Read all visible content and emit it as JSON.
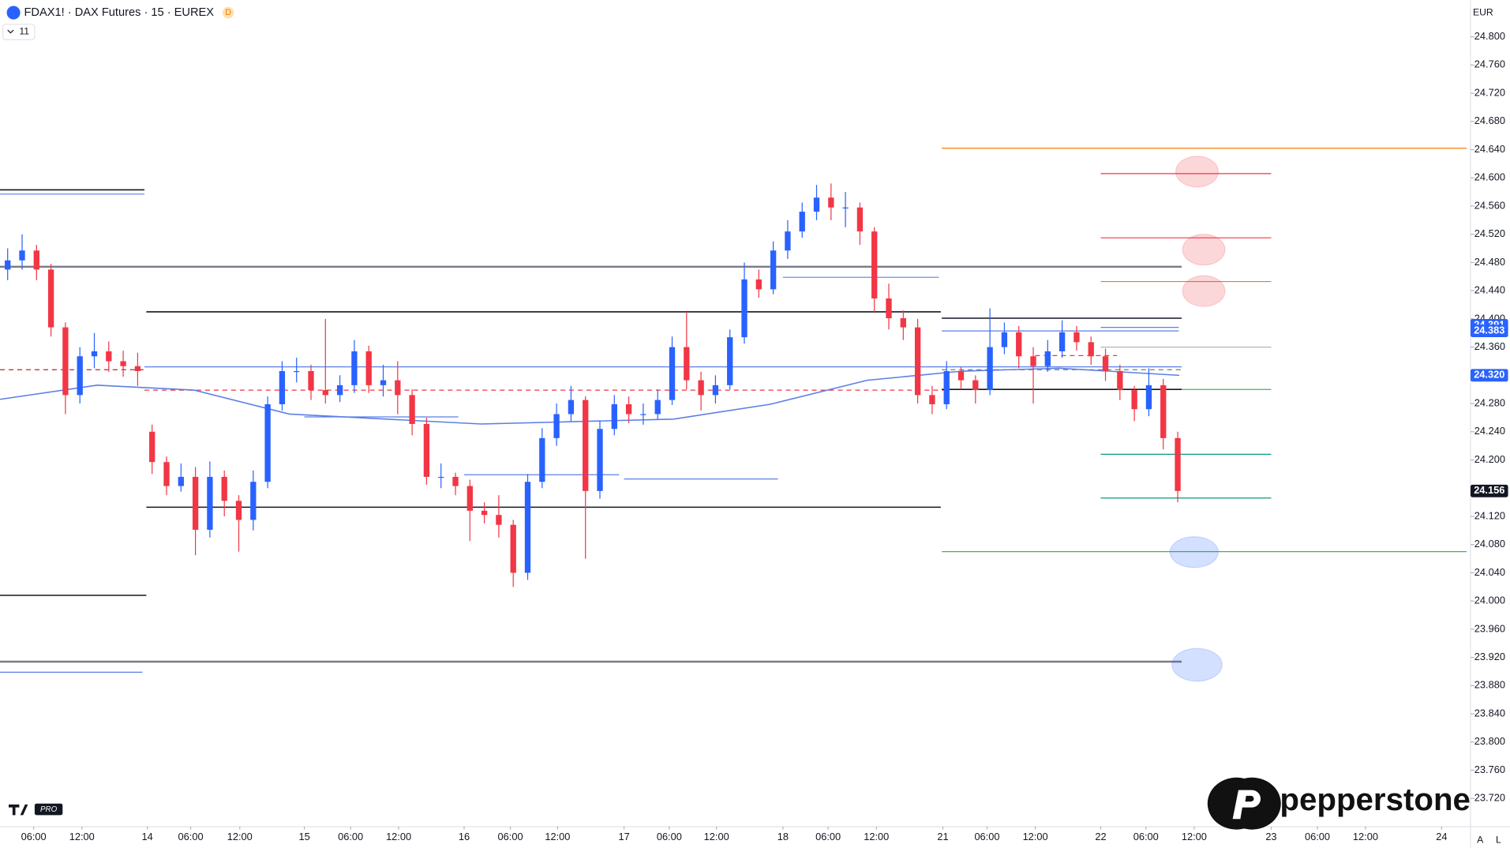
{
  "ui": {
    "symbol": "FDAX1! · DAX Futures · 15 · EUREX",
    "status_badge": "D",
    "indicator_count": 11,
    "currency": "EUR",
    "brand": "pepperstone",
    "tv_badge": "PRO",
    "auto_button": "A",
    "log_button": "L"
  },
  "chart_data": {
    "type": "candlestick",
    "ylim": [
      23680,
      24852
    ],
    "xlim": [
      -0.53,
      101.27
    ],
    "yticks": [
      {
        "value": 24800,
        "label": "24.800"
      },
      {
        "value": 24760,
        "label": "24.760"
      },
      {
        "value": 24720,
        "label": "24.720"
      },
      {
        "value": 24680,
        "label": "24.680"
      },
      {
        "value": 24640,
        "label": "24.640"
      },
      {
        "value": 24600,
        "label": "24.600"
      },
      {
        "value": 24560,
        "label": "24.560"
      },
      {
        "value": 24520,
        "label": "24.520"
      },
      {
        "value": 24480,
        "label": "24.480"
      },
      {
        "value": 24440,
        "label": "24.440"
      },
      {
        "value": 24400,
        "label": "24.400"
      },
      {
        "value": 24360,
        "label": "24.360"
      },
      {
        "value": 24280,
        "label": "24.280"
      },
      {
        "value": 24240,
        "label": "24.240"
      },
      {
        "value": 24200,
        "label": "24.200"
      },
      {
        "value": 24120,
        "label": "24.120"
      },
      {
        "value": 24080,
        "label": "24.080"
      },
      {
        "value": 24040,
        "label": "24.040"
      },
      {
        "value": 24000,
        "label": "24.000"
      },
      {
        "value": 23960,
        "label": "23.960"
      },
      {
        "value": 23920,
        "label": "23.920"
      },
      {
        "value": 23880,
        "label": "23.880"
      },
      {
        "value": 23840,
        "label": "23.840"
      },
      {
        "value": 23800,
        "label": "23.800"
      },
      {
        "value": 23760,
        "label": "23.760"
      },
      {
        "value": 23720,
        "label": "23.720"
      }
    ],
    "xticks": [
      {
        "value": 1.8,
        "label": "06:00"
      },
      {
        "value": 5.14,
        "label": "12:00"
      },
      {
        "value": 9.67,
        "label": "14"
      },
      {
        "value": 12.67,
        "label": "06:00"
      },
      {
        "value": 16.07,
        "label": "12:00"
      },
      {
        "value": 20.54,
        "label": "15"
      },
      {
        "value": 23.74,
        "label": "06:00"
      },
      {
        "value": 27.07,
        "label": "12:00"
      },
      {
        "value": 31.6,
        "label": "16"
      },
      {
        "value": 34.8,
        "label": "06:00"
      },
      {
        "value": 38.07,
        "label": "12:00"
      },
      {
        "value": 42.67,
        "label": "17"
      },
      {
        "value": 45.8,
        "label": "06:00"
      },
      {
        "value": 49.07,
        "label": "12:00"
      },
      {
        "value": 53.67,
        "label": "18"
      },
      {
        "value": 56.8,
        "label": "06:00"
      },
      {
        "value": 60.14,
        "label": "12:00"
      },
      {
        "value": 64.74,
        "label": "21"
      },
      {
        "value": 67.8,
        "label": "06:00"
      },
      {
        "value": 71.14,
        "label": "12:00"
      },
      {
        "value": 75.67,
        "label": "22"
      },
      {
        "value": 78.8,
        "label": "06:00"
      },
      {
        "value": 82.14,
        "label": "12:00"
      },
      {
        "value": 87.47,
        "label": "23"
      },
      {
        "value": 90.67,
        "label": "06:00"
      },
      {
        "value": 94.0,
        "label": "12:00"
      },
      {
        "value": 99.27,
        "label": "24"
      }
    ],
    "up_color": "#2962ff",
    "down_color": "#f23645",
    "open": [
      24470,
      24483,
      24497,
      24470,
      24388,
      24292,
      24347,
      24354,
      24340,
      24333,
      24240,
      24197,
      24163,
      24176,
      24101,
      24176,
      24142,
      24115,
      24169,
      24279,
      24326,
      24326,
      24299,
      24292,
      24306,
      24354,
      24306,
      24313,
      24292,
      24251,
      24176,
      24176,
      24163,
      24128,
      24122,
      24108,
      24040,
      24169,
      24231,
      24265,
      24285,
      24156,
      24244,
      24279,
      24265,
      24265,
      24285,
      24360,
      24313,
      24292,
      24306,
      24374,
      24456,
      24442,
      24497,
      24524,
      24552,
      24572,
      24558,
      24558,
      24524,
      24429,
      24401,
      24388,
      24292,
      24279,
      24326,
      24313,
      24299,
      24360,
      24381,
      24347,
      24333,
      24354,
      24381,
      24367,
      24347,
      24326,
      24299,
      24272,
      24306,
      24231
    ],
    "high": [
      24500,
      24520,
      24505,
      24478,
      24395,
      24360,
      24380,
      24368,
      24355,
      24352,
      24250,
      24205,
      24195,
      24190,
      24198,
      24185,
      24150,
      24185,
      24290,
      24340,
      24345,
      24335,
      24400,
      24320,
      24370,
      24362,
      24335,
      24340,
      24300,
      24260,
      24195,
      24182,
      24172,
      24140,
      24150,
      24115,
      24180,
      24245,
      24280,
      24305,
      24290,
      24255,
      24292,
      24290,
      24280,
      24300,
      24375,
      24410,
      24325,
      24320,
      24385,
      24480,
      24470,
      24510,
      24540,
      24565,
      24590,
      24592,
      24580,
      24565,
      24530,
      24450,
      24412,
      24400,
      24305,
      24340,
      24332,
      24320,
      24415,
      24395,
      24390,
      24360,
      24370,
      24398,
      24390,
      24375,
      24358,
      24335,
      24305,
      24330,
      24315,
      24240
    ],
    "low": [
      24455,
      24470,
      24455,
      24375,
      24265,
      24280,
      24330,
      24325,
      24318,
      24305,
      24180,
      24150,
      24155,
      24065,
      24090,
      24120,
      24070,
      24100,
      24160,
      24270,
      24310,
      24285,
      24280,
      24282,
      24295,
      24295,
      24290,
      24265,
      24235,
      24165,
      24160,
      24150,
      24085,
      24110,
      24090,
      24020,
      24030,
      24160,
      24220,
      24255,
      24060,
      24145,
      24235,
      24252,
      24250,
      24258,
      24278,
      24300,
      24270,
      24280,
      24300,
      24365,
      24430,
      24435,
      24485,
      24515,
      24540,
      24540,
      24530,
      24505,
      24410,
      24385,
      24370,
      24280,
      24265,
      24272,
      24300,
      24280,
      24292,
      24350,
      24330,
      24280,
      24325,
      24345,
      24355,
      24335,
      24312,
      24285,
      24255,
      24262,
      24215,
      24140
    ],
    "close": [
      24483,
      24497,
      24470,
      24388,
      24292,
      24347,
      24354,
      24340,
      24333,
      24326,
      24197,
      24163,
      24176,
      24101,
      24176,
      24142,
      24115,
      24169,
      24279,
      24326,
      24326,
      24299,
      24292,
      24306,
      24354,
      24306,
      24313,
      24292,
      24251,
      24176,
      24176,
      24163,
      24128,
      24122,
      24108,
      24040,
      24169,
      24231,
      24265,
      24285,
      24156,
      24244,
      24279,
      24265,
      24265,
      24285,
      24360,
      24313,
      24292,
      24306,
      24374,
      24456,
      24442,
      24497,
      24524,
      24552,
      24572,
      24558,
      24558,
      24524,
      24429,
      24401,
      24388,
      24292,
      24279,
      24326,
      24313,
      24299,
      24360,
      24381,
      24347,
      24333,
      24354,
      24381,
      24367,
      24347,
      24326,
      24299,
      24272,
      24306,
      24231,
      24156
    ],
    "moving_average": {
      "color": "#5b7fe6",
      "x": [
        -0.53,
        6.2,
        12.9,
        19.5,
        32.8,
        46.1,
        52.8,
        59.5,
        66.1,
        72.8,
        81.1
      ],
      "values": [
        24286,
        24306,
        24299,
        24265,
        24251,
        24258,
        24279,
        24313,
        24326,
        24330,
        24320
      ]
    },
    "levels": [
      {
        "value": 24583,
        "from": -0.53,
        "to": 9.47,
        "color": "#131722",
        "style": "solid",
        "width": 1.3
      },
      {
        "value": 24577,
        "from": -0.53,
        "to": 9.47,
        "color": "#5b7fe6",
        "style": "solid",
        "width": 1
      },
      {
        "value": 24474,
        "from": -0.53,
        "to": 81.27,
        "color": "#787b86",
        "style": "solid",
        "width": 2
      },
      {
        "value": 24410,
        "from": 9.6,
        "to": 64.6,
        "color": "#131722",
        "style": "solid",
        "width": 1.3
      },
      {
        "value": 24401,
        "from": 64.67,
        "to": 81.27,
        "color": "#131722",
        "style": "solid",
        "width": 1.3
      },
      {
        "value": 24383,
        "from": 64.67,
        "to": 81.07,
        "color": "#5b7fe6",
        "style": "solid",
        "width": 1
      },
      {
        "value": 24388,
        "from": 75.67,
        "to": 81.07,
        "color": "#5b7fe6",
        "style": "solid",
        "width": 1
      },
      {
        "value": 24360,
        "from": 75.67,
        "to": 87.47,
        "color": "#b2b5be",
        "style": "solid",
        "width": 1
      },
      {
        "value": 24348,
        "from": 71.13,
        "to": 76.8,
        "color": "#f23645",
        "style": "dashed",
        "width": 1
      },
      {
        "value": 24332,
        "from": 9.47,
        "to": 81.27,
        "color": "#5b7fe6",
        "style": "solid",
        "width": 1
      },
      {
        "value": 24328,
        "from": -0.53,
        "to": 9.47,
        "color": "#b22833",
        "style": "dashed",
        "width": 1
      },
      {
        "value": 24328,
        "from": 64.67,
        "to": 81.27,
        "color": "#787b86",
        "style": "dashed",
        "width": 1
      },
      {
        "value": 24299,
        "from": 9.47,
        "to": 64.8,
        "color": "#f23645",
        "style": "dashed",
        "width": 1
      },
      {
        "value": 24300,
        "from": 64.67,
        "to": 81.27,
        "color": "#131722",
        "style": "solid",
        "width": 1.3
      },
      {
        "value": 24300,
        "from": 81.27,
        "to": 87.47,
        "color": "#4caf50",
        "style": "solid",
        "width": 1
      },
      {
        "value": 24459,
        "from": 53.67,
        "to": 64.47,
        "color": "#5b7fe6",
        "style": "solid",
        "width": 1
      },
      {
        "value": 24261,
        "from": 20.53,
        "to": 31.2,
        "color": "#5b7fe6",
        "style": "solid",
        "width": 1
      },
      {
        "value": 24179,
        "from": 31.6,
        "to": 42.33,
        "color": "#5b7fe6",
        "style": "solid",
        "width": 1
      },
      {
        "value": 24173,
        "from": 42.67,
        "to": 53.33,
        "color": "#5b7fe6",
        "style": "solid",
        "width": 1
      },
      {
        "value": 24208,
        "from": 75.67,
        "to": 87.47,
        "color": "#089981",
        "style": "solid",
        "width": 1
      },
      {
        "value": 24146,
        "from": 75.67,
        "to": 87.47,
        "color": "#089981",
        "style": "solid",
        "width": 1
      },
      {
        "value": 24133,
        "from": 9.6,
        "to": 64.6,
        "color": "#131722",
        "style": "solid",
        "width": 1.3
      },
      {
        "value": 24070,
        "from": 64.67,
        "to": 101,
        "color": "#4caf50",
        "style": "solid",
        "width": 1
      },
      {
        "value": 24008,
        "from": -0.53,
        "to": 9.6,
        "color": "#131722",
        "style": "solid",
        "width": 1.3
      },
      {
        "value": 23914,
        "from": -0.53,
        "to": 81.27,
        "color": "#787b86",
        "style": "solid",
        "width": 2
      },
      {
        "value": 23899,
        "from": -0.53,
        "to": 9.33,
        "color": "#5b7fe6",
        "style": "solid",
        "width": 1
      },
      {
        "value": 24642,
        "from": 64.67,
        "to": 101,
        "color": "#f57c00",
        "style": "solid",
        "width": 1
      },
      {
        "value": 24606,
        "from": 75.67,
        "to": 87.47,
        "color": "#f23645",
        "style": "solid",
        "width": 1
      },
      {
        "value": 24515,
        "from": 75.67,
        "to": 87.47,
        "color": "#f23645",
        "style": "solid",
        "width": 1
      },
      {
        "value": 24453,
        "from": 75.67,
        "to": 87.47,
        "color": "#f57c00",
        "style": "solid",
        "width": 1
      }
    ],
    "price_labels": [
      {
        "value": 24391,
        "label": "24.391",
        "color": "#2962ff"
      },
      {
        "value": 24383,
        "label": "24.383",
        "color": "#2962ff"
      },
      {
        "value": 24320,
        "label": "24.320",
        "color": "#2962ff"
      },
      {
        "value": 24156,
        "label": "24.156",
        "color": "#131722"
      }
    ]
  }
}
